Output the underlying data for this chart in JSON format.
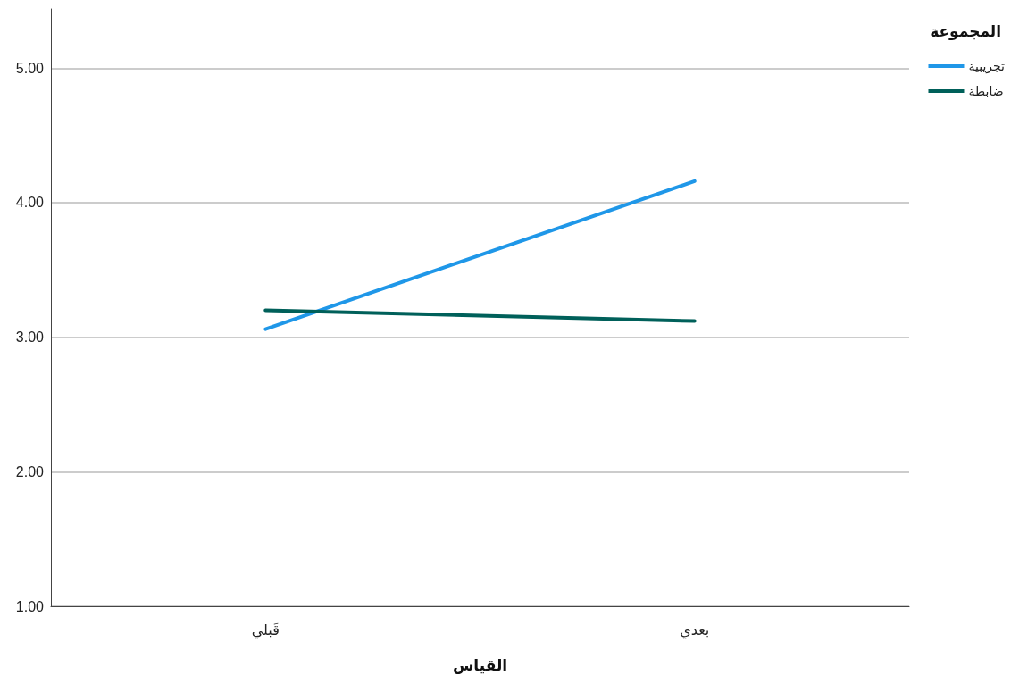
{
  "chart_data": {
    "type": "line",
    "xlabel": "القياس",
    "legend_title": "المجموعة",
    "categories": [
      "قَبلي",
      "بعدي"
    ],
    "series": [
      {
        "name": "تجريبية",
        "color": "#1f97e8",
        "values": [
          3.06,
          4.16
        ]
      },
      {
        "name": "ضابطة",
        "color": "#00605a",
        "values": [
          3.2,
          3.12
        ]
      }
    ],
    "ylim": [
      1,
      5.44
    ],
    "yticks": [
      {
        "value": 1,
        "label": "1.00"
      },
      {
        "value": 2,
        "label": "2.00"
      },
      {
        "value": 3,
        "label": "3.00"
      },
      {
        "value": 4,
        "label": "4.00"
      },
      {
        "value": 5,
        "label": "5.00"
      }
    ],
    "grid": "y",
    "legend": "top right",
    "marker": "none",
    "line_style": "solid"
  }
}
